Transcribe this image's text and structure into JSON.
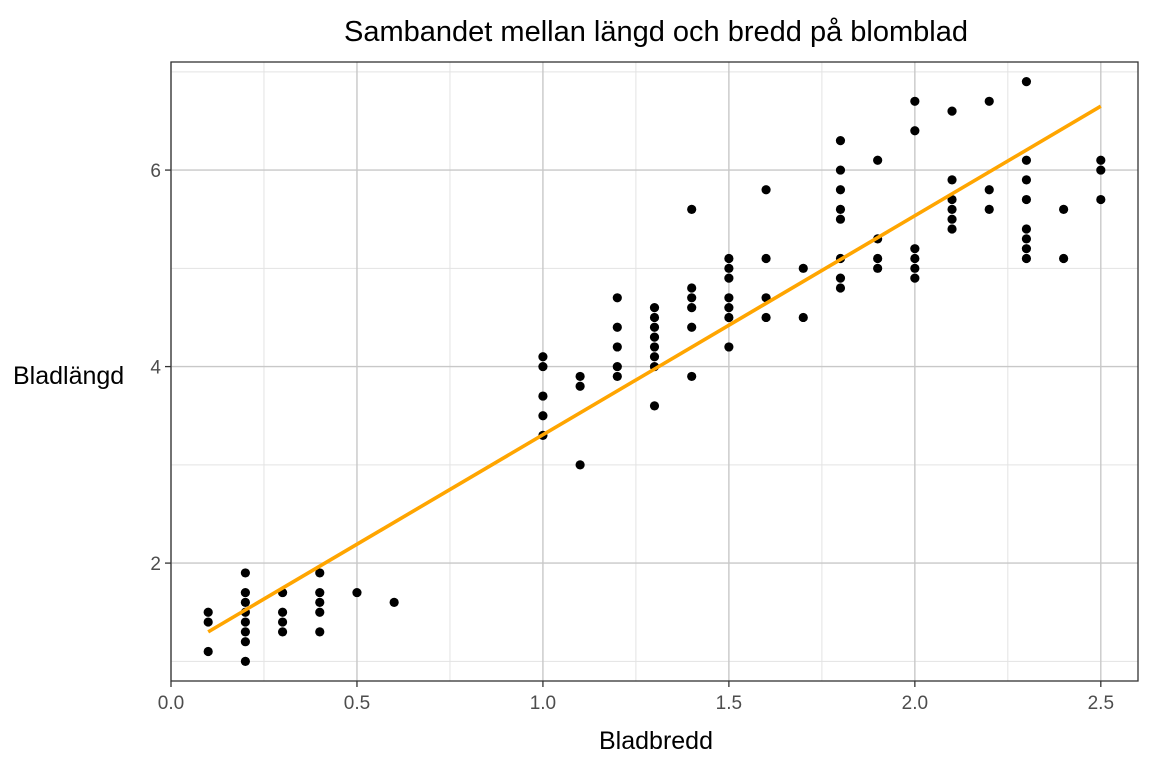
{
  "chart_data": {
    "type": "scatter",
    "title": "Sambandet mellan längd och bredd på blomblad",
    "xlabel": "Bladbredd",
    "ylabel": "Bladlängd",
    "xlim": [
      0.0,
      2.6
    ],
    "ylim": [
      0.8,
      7.1
    ],
    "xticks": [
      0.0,
      0.5,
      1.0,
      1.5,
      2.0,
      2.5
    ],
    "xtick_labels": [
      "0.0",
      "0.5",
      "1.0",
      "1.5",
      "2.0",
      "2.5"
    ],
    "yticks": [
      2,
      4,
      6
    ],
    "ytick_labels": [
      "2",
      "4",
      "6"
    ],
    "grid": true,
    "colors": {
      "points": "#000000",
      "trend_line": "#FFA500",
      "grid_major": "#c8c8c8",
      "grid_minor": "#e3e3e3",
      "panel_border": "#333333"
    },
    "trend_line": {
      "type": "linear",
      "x": [
        0.1,
        2.5
      ],
      "y": [
        1.3,
        6.65
      ]
    },
    "points": [
      {
        "x": 0.1,
        "y": 1.5
      },
      {
        "x": 0.1,
        "y": 1.4
      },
      {
        "x": 0.1,
        "y": 1.1
      },
      {
        "x": 0.2,
        "y": 1.9
      },
      {
        "x": 0.2,
        "y": 1.7
      },
      {
        "x": 0.2,
        "y": 1.6
      },
      {
        "x": 0.2,
        "y": 1.5
      },
      {
        "x": 0.2,
        "y": 1.4
      },
      {
        "x": 0.2,
        "y": 1.3
      },
      {
        "x": 0.2,
        "y": 1.2
      },
      {
        "x": 0.2,
        "y": 1.0
      },
      {
        "x": 0.3,
        "y": 1.7
      },
      {
        "x": 0.3,
        "y": 1.5
      },
      {
        "x": 0.3,
        "y": 1.4
      },
      {
        "x": 0.3,
        "y": 1.3
      },
      {
        "x": 0.4,
        "y": 1.9
      },
      {
        "x": 0.4,
        "y": 1.7
      },
      {
        "x": 0.4,
        "y": 1.6
      },
      {
        "x": 0.4,
        "y": 1.5
      },
      {
        "x": 0.4,
        "y": 1.3
      },
      {
        "x": 0.5,
        "y": 1.7
      },
      {
        "x": 0.6,
        "y": 1.6
      },
      {
        "x": 1.0,
        "y": 4.1
      },
      {
        "x": 1.0,
        "y": 4.0
      },
      {
        "x": 1.0,
        "y": 3.7
      },
      {
        "x": 1.0,
        "y": 3.5
      },
      {
        "x": 1.0,
        "y": 3.3
      },
      {
        "x": 1.1,
        "y": 3.9
      },
      {
        "x": 1.1,
        "y": 3.8
      },
      {
        "x": 1.1,
        "y": 3.0
      },
      {
        "x": 1.2,
        "y": 4.7
      },
      {
        "x": 1.2,
        "y": 4.4
      },
      {
        "x": 1.2,
        "y": 4.2
      },
      {
        "x": 1.2,
        "y": 4.0
      },
      {
        "x": 1.2,
        "y": 3.9
      },
      {
        "x": 1.3,
        "y": 4.6
      },
      {
        "x": 1.3,
        "y": 4.5
      },
      {
        "x": 1.3,
        "y": 4.4
      },
      {
        "x": 1.3,
        "y": 4.3
      },
      {
        "x": 1.3,
        "y": 4.2
      },
      {
        "x": 1.3,
        "y": 4.1
      },
      {
        "x": 1.3,
        "y": 4.0
      },
      {
        "x": 1.3,
        "y": 3.6
      },
      {
        "x": 1.4,
        "y": 5.6
      },
      {
        "x": 1.4,
        "y": 4.8
      },
      {
        "x": 1.4,
        "y": 4.7
      },
      {
        "x": 1.4,
        "y": 4.6
      },
      {
        "x": 1.4,
        "y": 4.4
      },
      {
        "x": 1.4,
        "y": 3.9
      },
      {
        "x": 1.5,
        "y": 5.1
      },
      {
        "x": 1.5,
        "y": 5.0
      },
      {
        "x": 1.5,
        "y": 4.9
      },
      {
        "x": 1.5,
        "y": 4.7
      },
      {
        "x": 1.5,
        "y": 4.6
      },
      {
        "x": 1.5,
        "y": 4.5
      },
      {
        "x": 1.5,
        "y": 4.2
      },
      {
        "x": 1.6,
        "y": 5.8
      },
      {
        "x": 1.6,
        "y": 5.1
      },
      {
        "x": 1.6,
        "y": 4.7
      },
      {
        "x": 1.6,
        "y": 4.5
      },
      {
        "x": 1.7,
        "y": 5.0
      },
      {
        "x": 1.7,
        "y": 4.5
      },
      {
        "x": 1.8,
        "y": 6.3
      },
      {
        "x": 1.8,
        "y": 6.0
      },
      {
        "x": 1.8,
        "y": 5.8
      },
      {
        "x": 1.8,
        "y": 5.6
      },
      {
        "x": 1.8,
        "y": 5.5
      },
      {
        "x": 1.8,
        "y": 5.1
      },
      {
        "x": 1.8,
        "y": 4.9
      },
      {
        "x": 1.8,
        "y": 4.8
      },
      {
        "x": 1.9,
        "y": 6.1
      },
      {
        "x": 1.9,
        "y": 5.3
      },
      {
        "x": 1.9,
        "y": 5.1
      },
      {
        "x": 1.9,
        "y": 5.0
      },
      {
        "x": 2.0,
        "y": 6.7
      },
      {
        "x": 2.0,
        "y": 6.4
      },
      {
        "x": 2.0,
        "y": 5.2
      },
      {
        "x": 2.0,
        "y": 5.1
      },
      {
        "x": 2.0,
        "y": 5.0
      },
      {
        "x": 2.0,
        "y": 4.9
      },
      {
        "x": 2.1,
        "y": 6.6
      },
      {
        "x": 2.1,
        "y": 5.9
      },
      {
        "x": 2.1,
        "y": 5.7
      },
      {
        "x": 2.1,
        "y": 5.6
      },
      {
        "x": 2.1,
        "y": 5.5
      },
      {
        "x": 2.1,
        "y": 5.4
      },
      {
        "x": 2.2,
        "y": 6.7
      },
      {
        "x": 2.2,
        "y": 5.8
      },
      {
        "x": 2.2,
        "y": 5.6
      },
      {
        "x": 2.3,
        "y": 6.9
      },
      {
        "x": 2.3,
        "y": 6.1
      },
      {
        "x": 2.3,
        "y": 5.9
      },
      {
        "x": 2.3,
        "y": 5.7
      },
      {
        "x": 2.3,
        "y": 5.4
      },
      {
        "x": 2.3,
        "y": 5.3
      },
      {
        "x": 2.3,
        "y": 5.2
      },
      {
        "x": 2.3,
        "y": 5.1
      },
      {
        "x": 2.4,
        "y": 5.6
      },
      {
        "x": 2.4,
        "y": 5.1
      },
      {
        "x": 2.5,
        "y": 6.1
      },
      {
        "x": 2.5,
        "y": 6.0
      },
      {
        "x": 2.5,
        "y": 5.7
      }
    ]
  }
}
